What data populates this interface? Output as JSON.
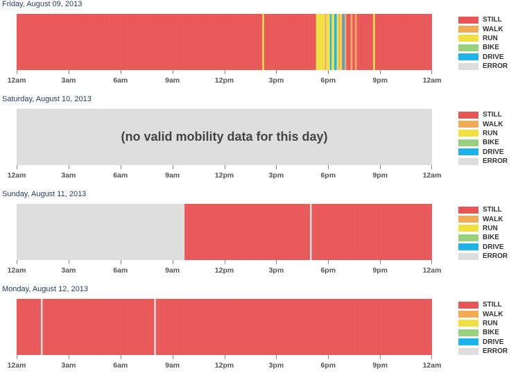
{
  "modes": [
    {
      "label": "STILL",
      "color": "#e85555"
    },
    {
      "label": "WALK",
      "color": "#f2aa55"
    },
    {
      "label": "RUN",
      "color": "#f0e040"
    },
    {
      "label": "BIKE",
      "color": "#99d27f"
    },
    {
      "label": "DRIVE",
      "color": "#1fb3ec"
    },
    {
      "label": "ERROR",
      "color": "#dddddd"
    }
  ],
  "chart_data": [
    {
      "type": "bar",
      "title": "Friday, August 09, 2013",
      "xlim": [
        0,
        24
      ],
      "x_ticks": [
        "12am",
        "3am",
        "6am",
        "9am",
        "12pm",
        "3pm",
        "6pm",
        "9pm",
        "12am"
      ],
      "segments": [
        {
          "start": 0,
          "end": 14.2,
          "mode": "STILL"
        },
        {
          "start": 14.2,
          "end": 14.3,
          "mode": "RUN"
        },
        {
          "start": 14.3,
          "end": 17.3,
          "mode": "STILL"
        },
        {
          "start": 17.3,
          "end": 17.8,
          "mode": "RUN"
        },
        {
          "start": 17.8,
          "end": 17.9,
          "mode": "WALK"
        },
        {
          "start": 17.9,
          "end": 18.1,
          "mode": "RUN"
        },
        {
          "start": 18.1,
          "end": 18.2,
          "mode": "DRIVE"
        },
        {
          "start": 18.2,
          "end": 18.35,
          "mode": "RUN"
        },
        {
          "start": 18.35,
          "end": 18.5,
          "mode": "DRIVE"
        },
        {
          "start": 18.5,
          "end": 18.6,
          "mode": "RUN"
        },
        {
          "start": 18.6,
          "end": 18.7,
          "mode": "WALK"
        },
        {
          "start": 18.7,
          "end": 18.8,
          "mode": "RUN"
        },
        {
          "start": 18.8,
          "end": 18.85,
          "mode": "STILL"
        },
        {
          "start": 18.85,
          "end": 18.95,
          "mode": "DRIVE"
        },
        {
          "start": 18.95,
          "end": 19.05,
          "mode": "WALK"
        },
        {
          "start": 19.05,
          "end": 19.3,
          "mode": "STILL"
        },
        {
          "start": 19.3,
          "end": 19.4,
          "mode": "WALK"
        },
        {
          "start": 19.4,
          "end": 19.55,
          "mode": "STILL"
        },
        {
          "start": 19.55,
          "end": 19.65,
          "mode": "WALK"
        },
        {
          "start": 19.65,
          "end": 20.6,
          "mode": "STILL"
        },
        {
          "start": 20.6,
          "end": 20.7,
          "mode": "RUN"
        },
        {
          "start": 20.7,
          "end": 24,
          "mode": "STILL"
        }
      ]
    },
    {
      "type": "bar",
      "title": "Saturday, August 10, 2013",
      "xlim": [
        0,
        24
      ],
      "x_ticks": [
        "12am",
        "3am",
        "6am",
        "9am",
        "12pm",
        "3pm",
        "6pm",
        "9pm",
        "12am"
      ],
      "annotation": "(no valid mobility data for this day)",
      "segments": [
        {
          "start": 0,
          "end": 24,
          "mode": "ERROR"
        }
      ]
    },
    {
      "type": "bar",
      "title": "Sunday, August 11, 2013",
      "xlim": [
        0,
        24
      ],
      "x_ticks": [
        "12am",
        "3am",
        "6am",
        "9am",
        "12pm",
        "3pm",
        "6pm",
        "9pm",
        "12am"
      ],
      "segments": [
        {
          "start": 0,
          "end": 9.7,
          "mode": "ERROR"
        },
        {
          "start": 9.7,
          "end": 16.95,
          "mode": "STILL"
        },
        {
          "start": 16.95,
          "end": 17.05,
          "mode": "ERROR"
        },
        {
          "start": 17.05,
          "end": 24,
          "mode": "STILL"
        }
      ]
    },
    {
      "type": "bar",
      "title": "Monday, August 12, 2013",
      "xlim": [
        0,
        24
      ],
      "x_ticks": [
        "12am",
        "3am",
        "6am",
        "9am",
        "12pm",
        "3pm",
        "6pm",
        "9pm",
        "12am"
      ],
      "segments": [
        {
          "start": 0,
          "end": 1.4,
          "mode": "STILL"
        },
        {
          "start": 1.4,
          "end": 1.5,
          "mode": "ERROR"
        },
        {
          "start": 1.5,
          "end": 7.95,
          "mode": "STILL"
        },
        {
          "start": 7.95,
          "end": 8.05,
          "mode": "ERROR"
        },
        {
          "start": 8.05,
          "end": 24,
          "mode": "STILL"
        }
      ]
    }
  ]
}
